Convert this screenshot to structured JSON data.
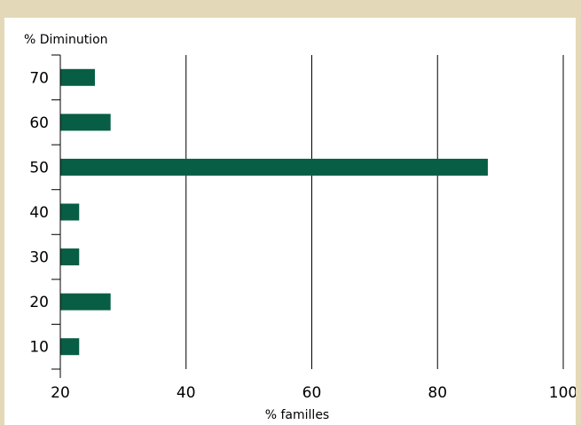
{
  "chart_data": {
    "type": "bar",
    "orientation": "horizontal",
    "categories": [
      "10",
      "20",
      "30",
      "40",
      "50",
      "60",
      "70"
    ],
    "values": [
      23,
      28,
      23,
      23,
      88,
      28,
      25.5
    ],
    "xlabel": "% familles",
    "ylabel": "% Diminution",
    "xlim": [
      20,
      100
    ],
    "xticks": [
      "20",
      "40",
      "60",
      "80",
      "100"
    ],
    "grid": "vertical",
    "bar_color": "#075e45"
  }
}
